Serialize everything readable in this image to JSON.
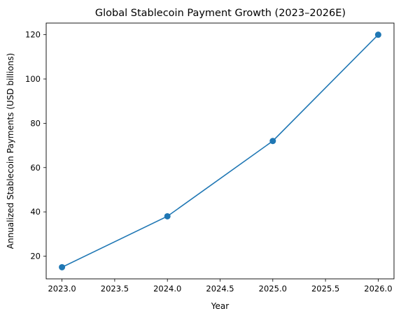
{
  "chart_data": {
    "type": "line",
    "title": "Global Stablecoin Payment Growth (2023–2026E)",
    "xlabel": "Year",
    "ylabel": "Annualized Stablecoin Payments (USD billions)",
    "x": [
      2023,
      2024,
      2025,
      2026
    ],
    "series": [
      {
        "values": [
          15,
          38,
          72,
          120
        ]
      }
    ],
    "xlim": [
      2022.85,
      2026.15
    ],
    "ylim": [
      9.75,
      125.25
    ],
    "xticks": [
      2023.0,
      2023.5,
      2024.0,
      2024.5,
      2025.0,
      2025.5,
      2026.0
    ],
    "xtick_labels": [
      "2023.0",
      "2023.5",
      "2024.0",
      "2024.5",
      "2025.0",
      "2025.5",
      "2026.0"
    ],
    "yticks": [
      20,
      40,
      60,
      80,
      100,
      120
    ],
    "ytick_labels": [
      "20",
      "40",
      "60",
      "80",
      "100",
      "120"
    ],
    "grid": false,
    "legend": "none",
    "line_color": "#1f77b4",
    "marker": "circle"
  }
}
